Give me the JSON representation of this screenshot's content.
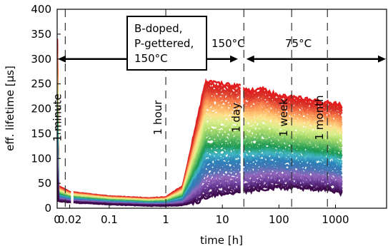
{
  "chart_data": {
    "type": "area",
    "xlabel": "time [h]",
    "ylabel": "eff. lifetime [μs]",
    "x_scale": "symlog",
    "xlim": [
      0,
      8000
    ],
    "ylim": [
      0,
      400
    ],
    "x_ticks": [
      {
        "value": 0,
        "label": "0"
      },
      {
        "value": 0.02,
        "label": "0.02"
      },
      {
        "value": 0.1,
        "label": "0.1"
      },
      {
        "value": 1,
        "label": "1"
      },
      {
        "value": 10,
        "label": "10"
      },
      {
        "value": 100,
        "label": "100"
      },
      {
        "value": 1000,
        "label": "1000"
      }
    ],
    "y_ticks": [
      0,
      50,
      100,
      150,
      200,
      250,
      300,
      350,
      400
    ],
    "grid": false,
    "reference_lines": [
      {
        "x": 0.0167,
        "label": "1 minute"
      },
      {
        "x": 1,
        "label": "1 hour"
      },
      {
        "x": 24,
        "label": "1 day"
      },
      {
        "x": 168,
        "label": "1 week"
      },
      {
        "x": 720,
        "label": "1 month"
      }
    ],
    "annotations": {
      "sample_box": [
        "B-doped,",
        "P-gettered,",
        "150°C"
      ],
      "phase_1": "150°C",
      "phase_2": "75°C"
    },
    "phase_1_range": [
      0,
      20
    ],
    "phase_2_range": [
      25,
      8000
    ],
    "colormap": [
      "#3d0a4c",
      "#6a3d9a",
      "#9467bd",
      "#4575b4",
      "#2c7fb8",
      "#41b6c4",
      "#1a9850",
      "#66bd63",
      "#a6d96a",
      "#d9ef8b",
      "#fee08b",
      "#fdae61",
      "#f46d43",
      "#d73027",
      "#e31a1c"
    ],
    "envelope": {
      "x": [
        0,
        0.005,
        0.02,
        0.1,
        0.5,
        1,
        2,
        4,
        5,
        8,
        20,
        30,
        50,
        100,
        200,
        500,
        1000,
        1300
      ],
      "upper": [
        340,
        45,
        33,
        24,
        20,
        22,
        45,
        200,
        255,
        250,
        245,
        235,
        240,
        225,
        222,
        215,
        210,
        205
      ],
      "lower": [
        60,
        15,
        12,
        8,
        5,
        5,
        6,
        15,
        22,
        28,
        32,
        35,
        38,
        42,
        40,
        38,
        35,
        30
      ]
    },
    "n_series": 60
  }
}
